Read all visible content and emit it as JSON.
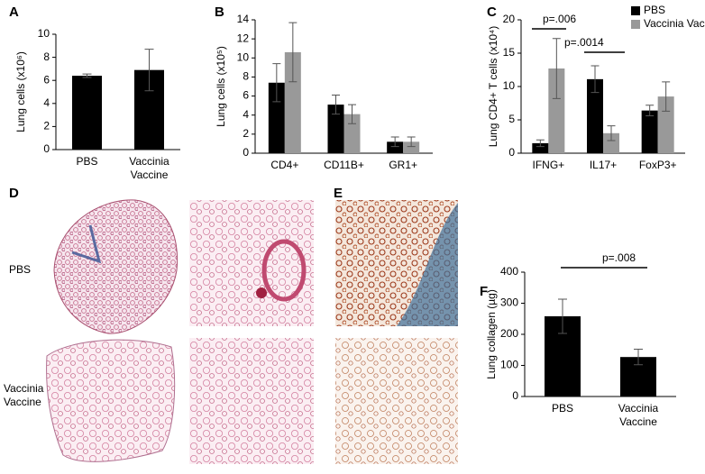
{
  "chart_data": [
    {
      "type": "bar",
      "label": "A",
      "ylabel": "Lung cells (x10⁶)",
      "categories": [
        "PBS",
        "Vaccinia Vaccine"
      ],
      "series": [
        {
          "color": "#000000",
          "values": [
            6.4,
            6.9
          ],
          "errors": [
            0.15,
            1.8
          ]
        }
      ],
      "ylim": [
        0,
        10
      ],
      "yticks": [
        0,
        2,
        4,
        6,
        8,
        10
      ]
    },
    {
      "type": "bar",
      "label": "B",
      "ylabel": "Lung cells (x10⁵)",
      "categories": [
        "CD4+",
        "CD11B+",
        "GR1+"
      ],
      "series": [
        {
          "name": "PBS",
          "color": "#000000",
          "values": [
            7.4,
            5.1,
            1.2
          ],
          "errors": [
            2.0,
            1.0,
            0.5
          ]
        },
        {
          "name": "Vaccinia Vaccine",
          "color": "#999999",
          "values": [
            10.6,
            4.1,
            1.2
          ],
          "errors": [
            3.1,
            1.0,
            0.5
          ]
        }
      ],
      "ylim": [
        0,
        14
      ],
      "yticks": [
        0,
        2,
        4,
        6,
        8,
        10,
        12,
        14
      ]
    },
    {
      "type": "bar",
      "label": "C",
      "ylabel": "Lung CD4+ T cells (x10⁴)",
      "categories": [
        "IFNG+",
        "IL17+",
        "FoxP3+"
      ],
      "series": [
        {
          "name": "PBS",
          "color": "#000000",
          "values": [
            1.5,
            11.1,
            6.4
          ],
          "errors": [
            0.5,
            2.0,
            0.8
          ]
        },
        {
          "name": "Vaccinia Vaccine",
          "color": "#999999",
          "values": [
            12.7,
            3.0,
            8.5
          ],
          "errors": [
            4.5,
            1.1,
            2.2
          ]
        }
      ],
      "ylim": [
        0,
        20
      ],
      "yticks": [
        0,
        5,
        10,
        15,
        20
      ],
      "legend": true,
      "annotations": [
        "p=.006",
        "p=.0014"
      ]
    },
    {
      "type": "bar",
      "label": "F",
      "ylabel": "Lung collagen (µg)",
      "categories": [
        "PBS",
        "Vaccinia Vaccine"
      ],
      "series": [
        {
          "color": "#000000",
          "values": [
            258,
            127
          ],
          "errors": [
            55,
            25
          ]
        }
      ],
      "ylim": [
        0,
        400
      ],
      "yticks": [
        0,
        100,
        200,
        300,
        400
      ],
      "annotations": [
        "p=.008"
      ]
    }
  ],
  "figure": {
    "image_panels": [
      "D",
      "E"
    ],
    "row_labels": [
      "PBS",
      "Vaccinia Vaccine"
    ]
  }
}
